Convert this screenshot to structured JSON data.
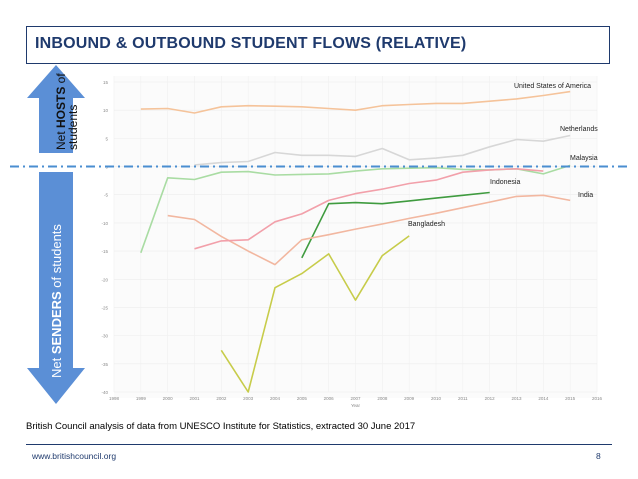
{
  "slide": {
    "title": "INBOUND & OUTBOUND STUDENT FLOWS (RELATIVE)",
    "caption": "British Council analysis of data from UNESCO Institute for Statistics, extracted 30 June 2017",
    "footer_url": "www.britishcouncil.org",
    "page_number": "8"
  },
  "arrows": {
    "up": {
      "prefix": "Net",
      "bold": "HOSTS",
      "suffix": "of",
      "line2": "students",
      "color": "#5b8fd6"
    },
    "down": {
      "prefix": "Net",
      "bold": "SENDERS",
      "suffix": "of students",
      "color": "#5b8fd6"
    }
  },
  "chart_data": {
    "type": "line",
    "xlabel": "Year",
    "ylabel": "",
    "x": [
      1998,
      1999,
      2000,
      2001,
      2002,
      2003,
      2004,
      2005,
      2006,
      2007,
      2008,
      2009,
      2010,
      2011,
      2012,
      2013,
      2014,
      2015,
      2016
    ],
    "xlim": [
      1998,
      2016
    ],
    "ylim": [
      -40,
      15
    ],
    "yticks": [
      15,
      10,
      5,
      0,
      -5,
      -10,
      -15,
      -20,
      -25,
      -30,
      -35,
      -40
    ],
    "zero_line_color": "#4a8ed0",
    "series": [
      {
        "name": "United States of America",
        "color": "#f5c39a",
        "points": [
          [
            1999,
            10.2
          ],
          [
            2000,
            10.3
          ],
          [
            2001,
            9.5
          ],
          [
            2002,
            10.6
          ],
          [
            2003,
            10.8
          ],
          [
            2004,
            10.7
          ],
          [
            2005,
            10.6
          ],
          [
            2006,
            10.3
          ],
          [
            2007,
            10.0
          ],
          [
            2008,
            10.8
          ],
          [
            2009,
            11.0
          ],
          [
            2010,
            11.2
          ],
          [
            2011,
            11.2
          ],
          [
            2012,
            11.6
          ],
          [
            2013,
            12.0
          ],
          [
            2014,
            12.6
          ],
          [
            2015,
            13.3
          ]
        ]
      },
      {
        "name": "Netherlands",
        "color": "#d7d7d7",
        "points": [
          [
            2001,
            0.3
          ],
          [
            2002,
            0.7
          ],
          [
            2003,
            0.9
          ],
          [
            2004,
            2.5
          ],
          [
            2005,
            2.0
          ],
          [
            2006,
            2.0
          ],
          [
            2007,
            1.8
          ],
          [
            2008,
            3.2
          ],
          [
            2009,
            1.2
          ],
          [
            2010,
            1.5
          ],
          [
            2011,
            2.0
          ],
          [
            2012,
            3.5
          ],
          [
            2013,
            4.8
          ],
          [
            2014,
            4.5
          ],
          [
            2015,
            5.5
          ]
        ]
      },
      {
        "name": "Malaysia",
        "color": "#a9dca3",
        "points": [
          [
            1999,
            -15.3
          ],
          [
            2000,
            -2.0
          ],
          [
            2001,
            -2.3
          ],
          [
            2002,
            -1.0
          ],
          [
            2003,
            -0.9
          ],
          [
            2004,
            -1.5
          ],
          [
            2005,
            -1.4
          ],
          [
            2006,
            -1.3
          ],
          [
            2007,
            -0.8
          ],
          [
            2008,
            -0.4
          ],
          [
            2009,
            -0.3
          ],
          [
            2010,
            -0.2
          ],
          [
            2011,
            -0.5
          ],
          [
            2012,
            -0.6
          ],
          [
            2013,
            -0.4
          ],
          [
            2014,
            -1.3
          ],
          [
            2015,
            0.2
          ]
        ]
      },
      {
        "name": "Indonesia",
        "color": "#3f9b3f",
        "points": [
          [
            2005,
            -16.2
          ],
          [
            2006,
            -6.6
          ],
          [
            2007,
            -6.4
          ],
          [
            2008,
            -6.6
          ],
          [
            2009,
            -6.1
          ],
          [
            2010,
            -5.6
          ],
          [
            2011,
            -5.1
          ],
          [
            2012,
            -4.6
          ]
        ]
      },
      {
        "name": "India",
        "color": "#f2b7a0",
        "points": [
          [
            2000,
            -8.7
          ],
          [
            2001,
            -9.4
          ],
          [
            2002,
            -12.4
          ],
          [
            2003,
            -15.0
          ],
          [
            2004,
            -17.4
          ],
          [
            2005,
            -13.0
          ],
          [
            2006,
            -12.1
          ],
          [
            2007,
            -11.1
          ],
          [
            2008,
            -10.2
          ],
          [
            2009,
            -9.2
          ],
          [
            2010,
            -8.3
          ],
          [
            2011,
            -7.3
          ],
          [
            2012,
            -6.3
          ],
          [
            2013,
            -5.3
          ],
          [
            2014,
            -5.1
          ],
          [
            2015,
            -6.0
          ]
        ]
      },
      {
        "name": "",
        "color": "#f2a0aa",
        "points": [
          [
            2001,
            -14.6
          ],
          [
            2002,
            -13.2
          ],
          [
            2003,
            -13.0
          ],
          [
            2004,
            -9.8
          ],
          [
            2005,
            -8.4
          ],
          [
            2006,
            -6.0
          ],
          [
            2007,
            -4.8
          ],
          [
            2008,
            -4.0
          ],
          [
            2009,
            -3.0
          ],
          [
            2010,
            -2.4
          ],
          [
            2011,
            -1.0
          ],
          [
            2012,
            -0.6
          ],
          [
            2013,
            -0.4
          ],
          [
            2014,
            -0.8
          ]
        ]
      },
      {
        "name": "Bangladesh",
        "color": "#c7cc4a",
        "points": [
          [
            2002,
            -32.6
          ],
          [
            2003,
            -40.0
          ],
          [
            2004,
            -21.5
          ],
          [
            2005,
            -19.0
          ],
          [
            2006,
            -15.5
          ],
          [
            2007,
            -23.7
          ],
          [
            2008,
            -15.8
          ],
          [
            2009,
            -12.3
          ]
        ]
      }
    ]
  }
}
